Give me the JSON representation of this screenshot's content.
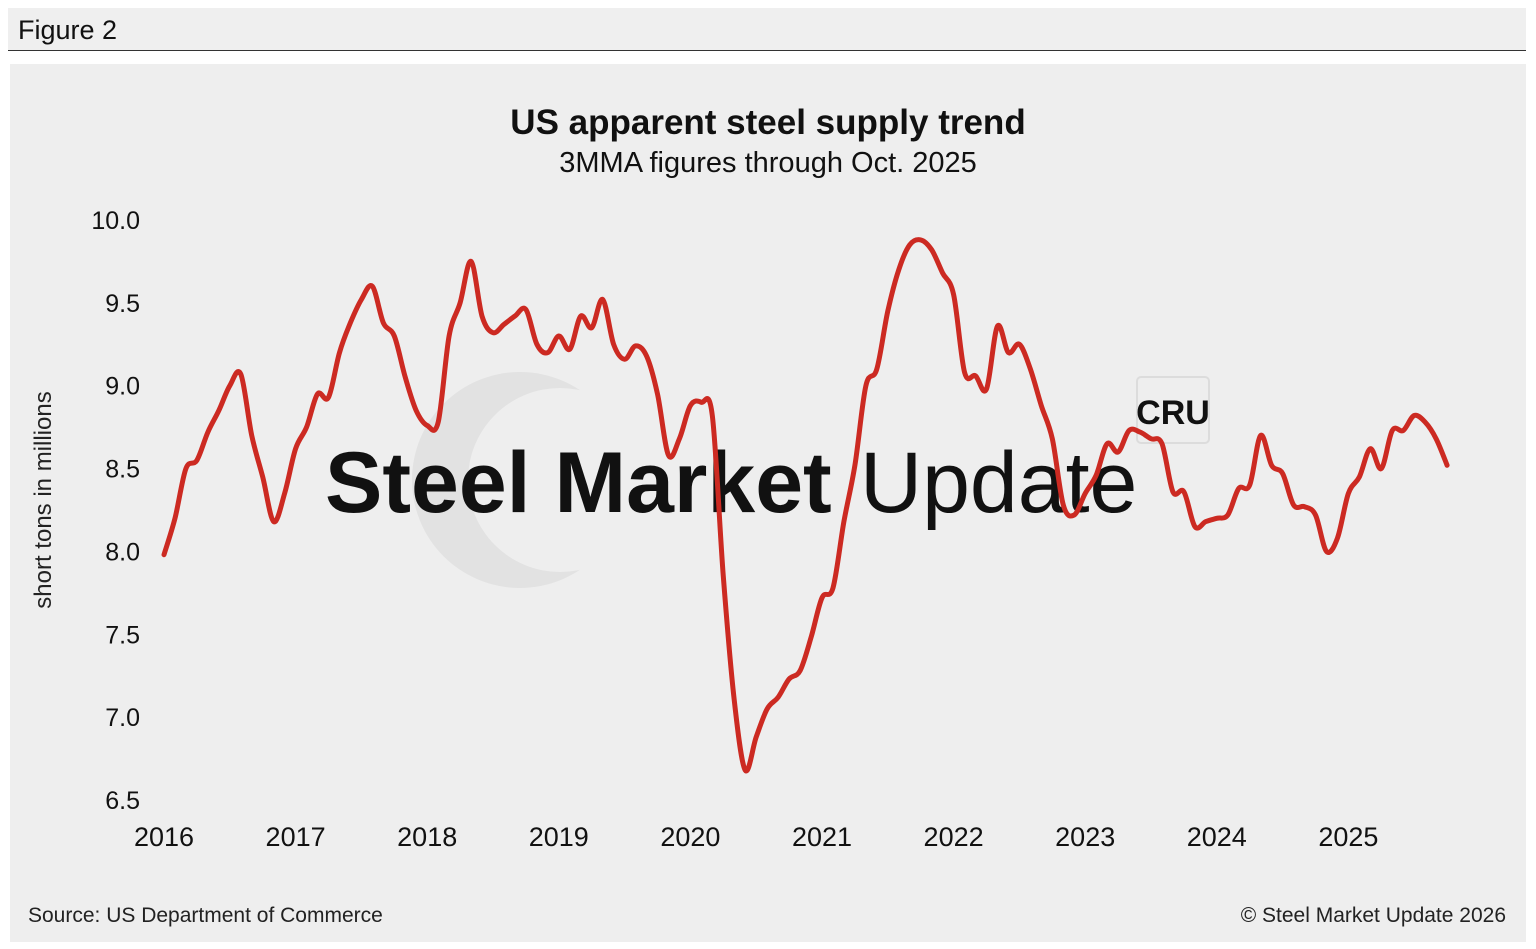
{
  "figure_label": "Figure 2",
  "source": "Source: US Department of Commerce",
  "copyright": "© Steel Market Update 2026",
  "watermark": {
    "text_bold": "Steel Market",
    "text_light": "Update",
    "badge": "CRU"
  },
  "colors": {
    "line": "#cc2a22",
    "panel": "#eeeeee",
    "header": "#efefef"
  },
  "chart_data": {
    "type": "line",
    "title": "US apparent steel supply trend",
    "subtitle": "3MMA figures through Oct. 2025",
    "ylabel": "short tons in millions",
    "xlabel": "",
    "ylim": [
      6.5,
      10.0
    ],
    "yticks": [
      "10.0",
      "9.5",
      "9.0",
      "8.5",
      "8.0",
      "7.5",
      "7.0",
      "6.5"
    ],
    "xticks": [
      "2016",
      "2017",
      "2018",
      "2019",
      "2020",
      "2021",
      "2022",
      "2023",
      "2024",
      "2025"
    ],
    "grid": false,
    "series": [
      {
        "x": [
          "2016-01",
          "2016-02",
          "2016-03",
          "2016-04",
          "2016-05",
          "2016-06",
          "2016-07",
          "2016-08",
          "2016-09",
          "2016-10",
          "2016-11",
          "2016-12",
          "2017-01",
          "2017-02",
          "2017-03",
          "2017-04",
          "2017-05",
          "2017-06",
          "2017-07",
          "2017-08",
          "2017-09",
          "2017-10",
          "2017-11",
          "2017-12",
          "2018-01",
          "2018-02",
          "2018-03",
          "2018-04",
          "2018-05",
          "2018-06",
          "2018-07",
          "2018-08",
          "2018-09",
          "2018-10",
          "2018-11",
          "2018-12",
          "2019-01",
          "2019-02",
          "2019-03",
          "2019-04",
          "2019-05",
          "2019-06",
          "2019-07",
          "2019-08",
          "2019-09",
          "2019-10",
          "2019-11",
          "2019-12",
          "2020-01",
          "2020-02",
          "2020-03",
          "2020-04",
          "2020-05",
          "2020-06",
          "2020-07",
          "2020-08",
          "2020-09",
          "2020-10",
          "2020-11",
          "2020-12",
          "2021-01",
          "2021-02",
          "2021-03",
          "2021-04",
          "2021-05",
          "2021-06",
          "2021-07",
          "2021-08",
          "2021-09",
          "2021-10",
          "2021-11",
          "2021-12",
          "2022-01",
          "2022-02",
          "2022-03",
          "2022-04",
          "2022-05",
          "2022-06",
          "2022-07",
          "2022-08",
          "2022-09",
          "2022-10",
          "2022-11",
          "2022-12",
          "2023-01",
          "2023-02",
          "2023-03",
          "2023-04",
          "2023-05",
          "2023-06",
          "2023-07",
          "2023-08",
          "2023-09",
          "2023-10",
          "2023-11",
          "2023-12",
          "2024-01",
          "2024-02",
          "2024-03",
          "2024-04",
          "2024-05",
          "2024-06",
          "2024-07",
          "2024-08",
          "2024-09",
          "2024-10",
          "2024-11",
          "2024-12",
          "2025-01",
          "2025-02",
          "2025-03",
          "2025-04",
          "2025-05",
          "2025-06",
          "2025-07",
          "2025-08",
          "2025-09",
          "2025-10"
        ],
        "values": [
          7.98,
          8.2,
          8.5,
          8.55,
          8.72,
          8.85,
          9.0,
          9.07,
          8.7,
          8.45,
          8.18,
          8.35,
          8.62,
          8.75,
          8.95,
          8.93,
          9.2,
          9.38,
          9.52,
          9.6,
          9.38,
          9.3,
          9.05,
          8.85,
          8.76,
          8.78,
          9.3,
          9.5,
          9.75,
          9.42,
          9.32,
          9.37,
          9.42,
          9.46,
          9.25,
          9.2,
          9.3,
          9.22,
          9.42,
          9.35,
          9.52,
          9.25,
          9.16,
          9.24,
          9.18,
          8.95,
          8.58,
          8.68,
          8.88,
          8.9,
          8.82,
          7.85,
          7.1,
          6.68,
          6.88,
          7.05,
          7.12,
          7.23,
          7.28,
          7.48,
          7.72,
          7.78,
          8.18,
          8.52,
          9.0,
          9.1,
          9.45,
          9.7,
          9.85,
          9.88,
          9.82,
          9.68,
          9.55,
          9.08,
          9.06,
          8.98,
          9.36,
          9.2,
          9.25,
          9.1,
          8.88,
          8.68,
          8.28,
          8.22,
          8.35,
          8.46,
          8.65,
          8.6,
          8.73,
          8.72,
          8.68,
          8.65,
          8.36,
          8.36,
          8.15,
          8.18,
          8.2,
          8.22,
          8.38,
          8.4,
          8.7,
          8.52,
          8.47,
          8.28,
          8.27,
          8.22,
          8.0,
          8.08,
          8.35,
          8.45,
          8.62,
          8.5,
          8.73,
          8.73,
          8.82,
          8.78,
          8.68,
          8.52
        ]
      }
    ]
  }
}
